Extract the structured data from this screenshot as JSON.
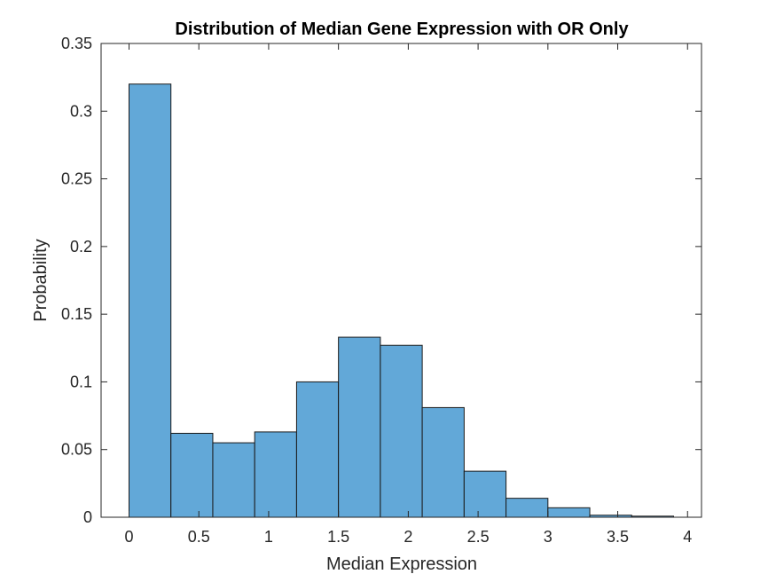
{
  "chart_data": {
    "type": "bar",
    "title": "Distribution of Median Gene Expression with OR Only",
    "xlabel": "Median Expression",
    "ylabel": "Probability",
    "xlim": [
      -0.2,
      4.1
    ],
    "ylim": [
      0,
      0.35
    ],
    "xticks": [
      0,
      0.5,
      1,
      1.5,
      2,
      2.5,
      3,
      3.5,
      4
    ],
    "xtick_labels": [
      "0",
      "0.5",
      "1",
      "1.5",
      "2",
      "2.5",
      "3",
      "3.5",
      "4"
    ],
    "yticks": [
      0,
      0.05,
      0.1,
      0.15,
      0.2,
      0.25,
      0.3,
      0.35
    ],
    "ytick_labels": [
      "0",
      "0.05",
      "0.1",
      "0.15",
      "0.2",
      "0.25",
      "0.3",
      "0.35"
    ],
    "bin_edges": [
      0,
      0.3,
      0.6,
      0.9,
      1.2,
      1.5,
      1.8,
      2.1,
      2.4,
      2.7,
      3.0,
      3.3,
      3.6,
      3.9
    ],
    "values": [
      0.32,
      0.062,
      0.055,
      0.063,
      0.1,
      0.133,
      0.127,
      0.081,
      0.034,
      0.014,
      0.007,
      0.0015,
      0.0008
    ],
    "grid": false,
    "bar_color": "#62a8d8",
    "edge_color": "#1a1a1a",
    "axes_color": "#262626"
  }
}
